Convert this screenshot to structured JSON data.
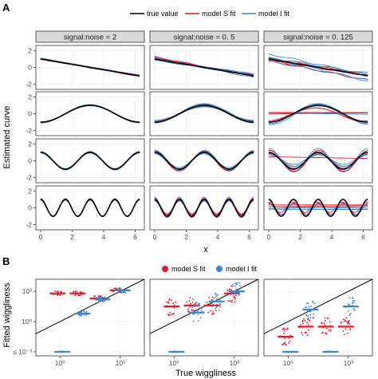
{
  "figure": {
    "panel_a_letter": "A",
    "panel_b_letter": "B"
  },
  "chart_data": [
    {
      "type": "line",
      "panel": "A",
      "xlabel": "x",
      "ylabel": "Estimated curve",
      "legend": {
        "placement": "top",
        "entries": [
          {
            "name": "true value",
            "color": "#000000"
          },
          {
            "name": "model S fit",
            "color": "#e41a2c"
          },
          {
            "name": "model I fit",
            "color": "#3a86c8"
          }
        ]
      },
      "facets": [
        "signal:noise = 2",
        "signal:noise = 0. 5",
        "signal:noise = 0. 125"
      ],
      "rows": [
        {
          "frequency": 0,
          "description_values": "linear decrease",
          "ylim": [
            -2,
            2
          ]
        },
        {
          "frequency": 1,
          "ylim": [
            -2,
            2
          ]
        },
        {
          "frequency": 2,
          "ylim": [
            -2,
            2
          ]
        },
        {
          "frequency": 4,
          "ylim": [
            -2,
            2
          ]
        }
      ],
      "xlim": [
        0,
        6.28
      ],
      "x_ticks": [
        "0",
        "2",
        "4",
        "6"
      ],
      "y_ticks": [
        "-2",
        "0",
        "2"
      ],
      "true_curves": [
        {
          "row": 1,
          "x": [
            0,
            6.28
          ],
          "y": [
            1.0,
            -1.0
          ]
        },
        {
          "row": 2,
          "function": "-cos(x)",
          "x": [
            0,
            1.57,
            3.14,
            4.71,
            6.28
          ],
          "y": [
            -1,
            0,
            1,
            0,
            -1
          ]
        },
        {
          "row": 3,
          "function": "cos(2x)",
          "x": [
            0,
            0.79,
            1.57,
            2.36,
            3.14
          ],
          "y": [
            1,
            0,
            -1,
            0,
            1
          ]
        },
        {
          "row": 4,
          "function": "cos(4x)",
          "x": [
            0,
            0.39,
            0.79,
            1.18,
            1.57
          ],
          "y": [
            1,
            0,
            -1,
            0,
            1
          ]
        }
      ]
    },
    {
      "type": "scatter",
      "panel": "B",
      "xlabel": "True wiggliness",
      "ylabel": "Fitted wiggliness",
      "legend": {
        "placement": "top",
        "entries": [
          {
            "name": "model S fit",
            "color": "#e41a2c"
          },
          {
            "name": "model I fit",
            "color": "#3a86c8"
          }
        ]
      },
      "x_ticks": [
        "10⁰",
        "10³"
      ],
      "y_ticks": [
        "≤ 10⁻³",
        "10⁰",
        "10³"
      ],
      "xlim_log10": [
        -1.2,
        4.2
      ],
      "ylim_log10": [
        -3.4,
        4.2
      ],
      "reference_line": "y = x",
      "groups": [
        {
          "facet": 1,
          "true_log10": 0,
          "model": "S",
          "median_log10": 2.8
        },
        {
          "facet": 1,
          "true_log10": 0,
          "model": "I",
          "median_log10": -3.0
        },
        {
          "facet": 1,
          "true_log10": 1,
          "model": "S",
          "median_log10": 2.8
        },
        {
          "facet": 1,
          "true_log10": 1,
          "model": "I",
          "median_log10": 0.8
        },
        {
          "facet": 1,
          "true_log10": 2,
          "model": "S",
          "median_log10": 2.3
        },
        {
          "facet": 1,
          "true_log10": 2,
          "model": "I",
          "median_log10": 2.2
        },
        {
          "facet": 1,
          "true_log10": 3,
          "model": "S",
          "median_log10": 3.1
        },
        {
          "facet": 1,
          "true_log10": 3,
          "model": "I",
          "median_log10": 3.1
        },
        {
          "facet": 2,
          "true_log10": 0,
          "model": "S",
          "median_log10": 1.5
        },
        {
          "facet": 2,
          "true_log10": 0,
          "model": "I",
          "median_log10": -3.0
        },
        {
          "facet": 2,
          "true_log10": 1,
          "model": "S",
          "median_log10": 1.6
        },
        {
          "facet": 2,
          "true_log10": 1,
          "model": "I",
          "median_log10": 0.9
        },
        {
          "facet": 2,
          "true_log10": 2,
          "model": "S",
          "median_log10": 1.6
        },
        {
          "facet": 2,
          "true_log10": 2,
          "model": "I",
          "median_log10": 2.0
        },
        {
          "facet": 2,
          "true_log10": 3,
          "model": "S",
          "median_log10": 2.8
        },
        {
          "facet": 2,
          "true_log10": 3,
          "model": "I",
          "median_log10": 3.0
        },
        {
          "facet": 3,
          "true_log10": 0,
          "model": "S",
          "median_log10": -1.5
        },
        {
          "facet": 3,
          "true_log10": 0,
          "model": "I",
          "median_log10": -3.0
        },
        {
          "facet": 3,
          "true_log10": 1,
          "model": "S",
          "median_log10": -0.5
        },
        {
          "facet": 3,
          "true_log10": 1,
          "model": "I",
          "median_log10": 1.2
        },
        {
          "facet": 3,
          "true_log10": 2,
          "model": "S",
          "median_log10": -0.5
        },
        {
          "facet": 3,
          "true_log10": 2,
          "model": "I",
          "median_log10": -3.0
        },
        {
          "facet": 3,
          "true_log10": 3,
          "model": "S",
          "median_log10": -0.5
        },
        {
          "facet": 3,
          "true_log10": 3,
          "model": "I",
          "median_log10": 1.5
        }
      ]
    }
  ]
}
